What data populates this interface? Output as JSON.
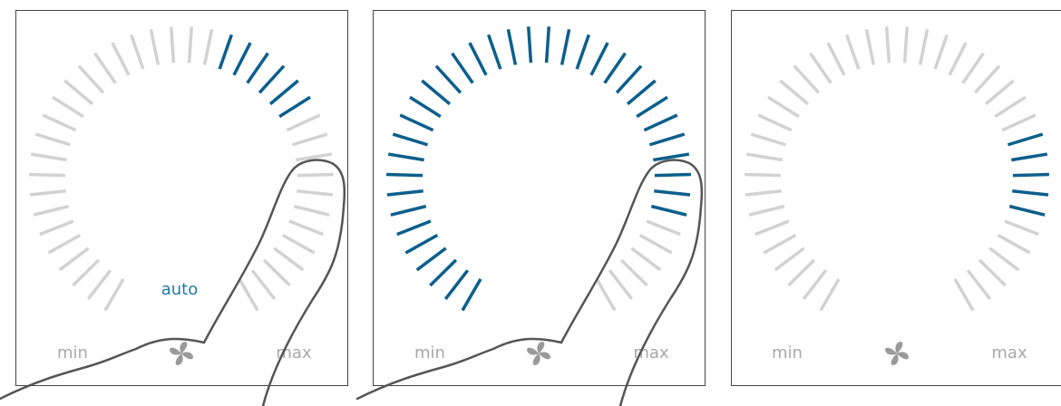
{
  "panels": [
    {
      "min_label": "min",
      "max_label": "max",
      "mode_label": "auto"
    },
    {
      "min_label": "min",
      "max_label": "max"
    },
    {
      "min_label": "min",
      "max_label": "max"
    }
  ]
}
